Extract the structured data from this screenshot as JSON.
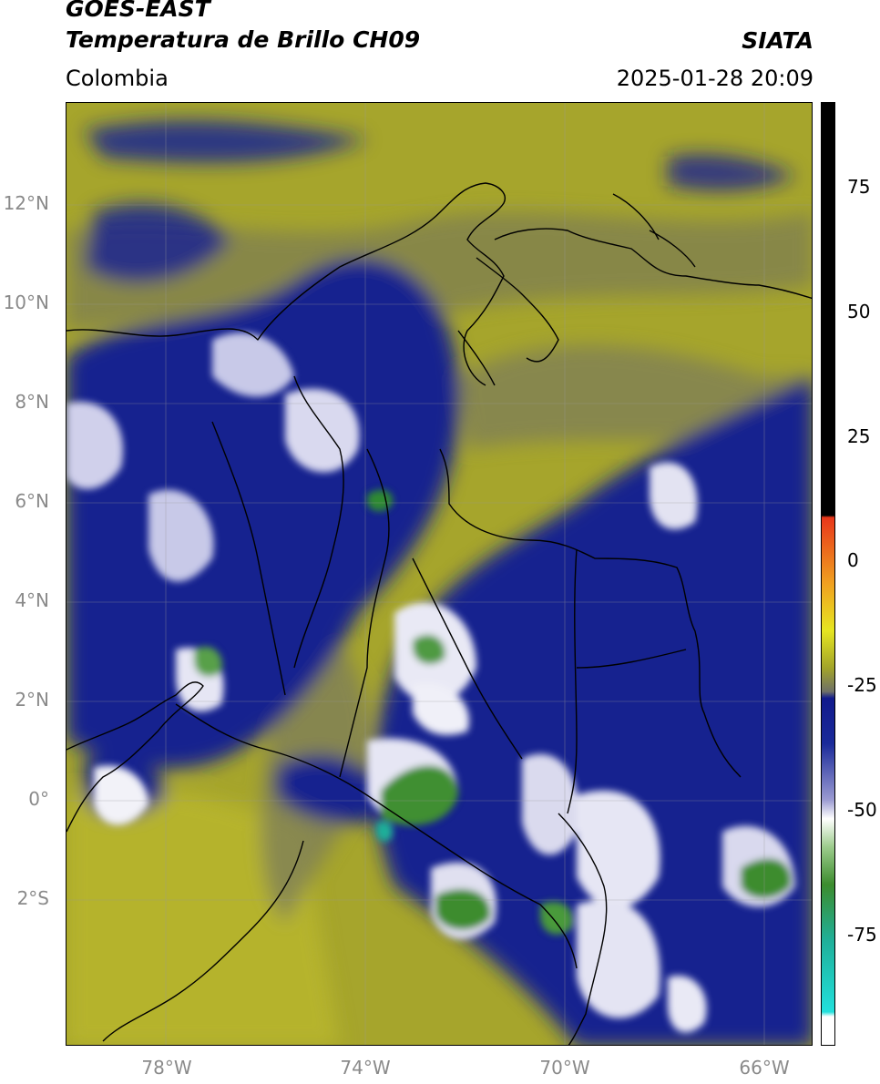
{
  "header": {
    "satellite": "GOES-EAST",
    "product": "Temperatura de Brillo CH09",
    "brand": "SIATA",
    "region": "Colombia",
    "datetime": "2025-01-28 20:09"
  },
  "map": {
    "lat_labels": [
      "12°N",
      "10°N",
      "8°N",
      "6°N",
      "4°N",
      "2°N",
      "0°",
      "2°S"
    ],
    "lon_labels": [
      "78°W",
      "74°W",
      "70°W",
      "66°W"
    ],
    "lat_range": [
      -5,
      14
    ],
    "lon_range": [
      -80,
      -65
    ]
  },
  "colorbar": {
    "ticks": [
      "75",
      "50",
      "25",
      "0",
      "-25",
      "-50",
      "-75"
    ],
    "range": [
      -95,
      90
    ],
    "colors": {
      "black": "#000000",
      "red": "#e8361a",
      "orange": "#f0a020",
      "yellow": "#e6e621",
      "olive": "#a2a42a",
      "gray": "#6e7067",
      "navy": "#111a8c",
      "white": "#ffffff",
      "green": "#3c8c2e",
      "teal": "#1fb09a",
      "cyan": "#22e0dc"
    }
  }
}
